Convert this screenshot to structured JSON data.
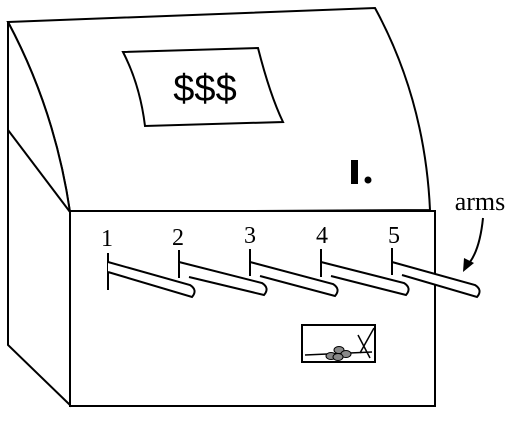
{
  "price_sign": "$$$",
  "slot_mark": "I.",
  "arms_label": "arms",
  "arms": [
    {
      "number": "1"
    },
    {
      "number": "2"
    },
    {
      "number": "3"
    },
    {
      "number": "4"
    },
    {
      "number": "5"
    }
  ]
}
